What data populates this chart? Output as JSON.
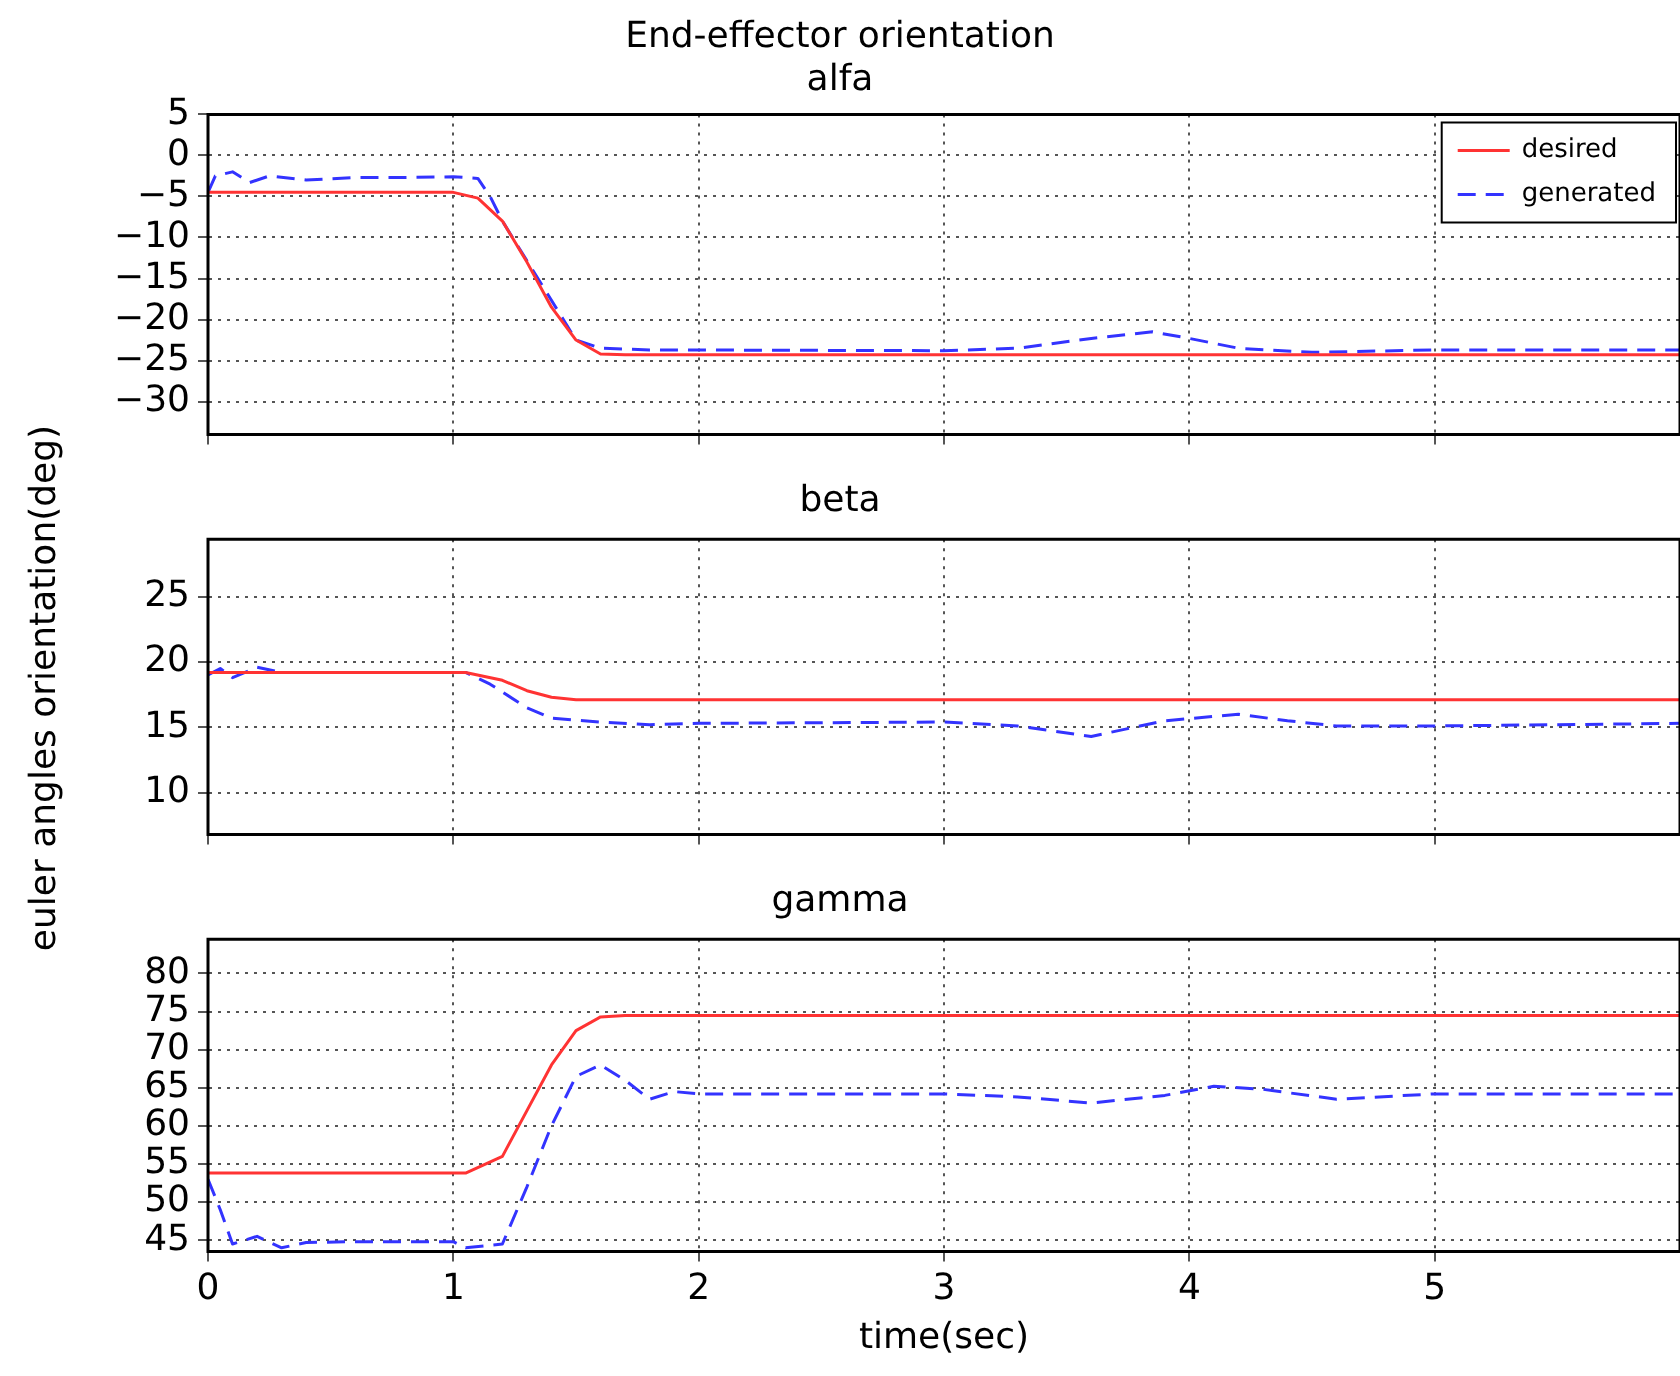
{
  "chart_data": [
    {
      "type": "line",
      "title": "End-effector orientation",
      "subtitle": "alfa",
      "xlim": [
        0,
        6
      ],
      "xticks": [
        0,
        1,
        2,
        3,
        4,
        5
      ],
      "ylim": [
        -34,
        5
      ],
      "yticks": [
        5,
        0,
        -5,
        -10,
        -15,
        -20,
        -25,
        -30
      ],
      "grid": true,
      "legend": "top right",
      "marker": "none",
      "tick_labels": "y",
      "series": [
        {
          "name": "desired",
          "color": "#ff3333",
          "line_style": "solid",
          "x": [
            0,
            1,
            1.1,
            1.2,
            1.3,
            1.4,
            1.5,
            1.6,
            1.7,
            6
          ],
          "values": [
            -4.5,
            -4.5,
            -5.2,
            -8,
            -13,
            -18.5,
            -22.5,
            -24.2,
            -24.3,
            -24.3
          ]
        },
        {
          "name": "generated",
          "color": "#3333ff",
          "line_style": "dashed",
          "x": [
            0,
            0.03,
            0.1,
            0.17,
            0.25,
            0.4,
            0.6,
            0.8,
            1,
            1.1,
            1.15,
            1.2,
            1.5,
            1.6,
            1.8,
            3,
            3.3,
            3.6,
            3.85,
            4,
            4.2,
            4.5,
            5,
            6
          ],
          "values": [
            -4.5,
            -2.5,
            -2,
            -3.3,
            -2.5,
            -3,
            -2.7,
            -2.7,
            -2.6,
            -2.8,
            -5,
            -8,
            -22.5,
            -23.5,
            -23.7,
            -23.8,
            -23.5,
            -22.3,
            -21.5,
            -22.3,
            -23.5,
            -24,
            -23.7,
            -23.7
          ]
        }
      ]
    },
    {
      "type": "line",
      "title": "beta",
      "ylabel": "euler angles orientation(deg)",
      "xlim": [
        0,
        6
      ],
      "xticks": [
        0,
        1,
        2,
        3,
        4,
        5
      ],
      "ylim": [
        6.8,
        29.4
      ],
      "yticks": [
        10,
        15,
        20,
        25
      ],
      "grid": true,
      "marker": "none",
      "tick_labels": "y",
      "series": [
        {
          "color": "#ff3333",
          "line_style": "solid",
          "x": [
            0,
            1.05,
            1.2,
            1.3,
            1.4,
            1.5,
            6
          ],
          "values": [
            19.2,
            19.2,
            18.6,
            17.8,
            17.3,
            17.1,
            17.1
          ]
        },
        {
          "color": "#3333ff",
          "line_style": "dashed",
          "x": [
            0,
            0.05,
            0.1,
            0.2,
            0.3,
            1.05,
            1.15,
            1.3,
            1.4,
            1.6,
            1.8,
            2,
            3,
            3.3,
            3.6,
            3.9,
            4.2,
            4.4,
            4.6,
            5,
            6
          ],
          "values": [
            19,
            19.5,
            18.8,
            19.6,
            19.2,
            19.2,
            18.3,
            16.5,
            15.7,
            15.4,
            15.2,
            15.3,
            15.4,
            15.1,
            14.3,
            15.5,
            16,
            15.5,
            15.1,
            15.1,
            15.3
          ]
        }
      ]
    },
    {
      "type": "line",
      "title": "gamma",
      "xlabel": "time(sec)",
      "xlim": [
        0,
        6
      ],
      "xticks": [
        0,
        1,
        2,
        3,
        4,
        5
      ],
      "ylim": [
        43.5,
        84.5
      ],
      "yticks": [
        45,
        50,
        55,
        60,
        65,
        70,
        75,
        80
      ],
      "grid": true,
      "marker": "none",
      "series": [
        {
          "color": "#ff3333",
          "line_style": "solid",
          "x": [
            0,
            1.05,
            1.2,
            1.3,
            1.4,
            1.5,
            1.6,
            1.7,
            6
          ],
          "values": [
            53.8,
            53.8,
            56,
            62,
            68,
            72.5,
            74.3,
            74.5,
            74.5
          ]
        },
        {
          "color": "#3333ff",
          "line_style": "dashed",
          "x": [
            0,
            0.05,
            0.1,
            0.2,
            0.3,
            0.4,
            0.6,
            0.8,
            1,
            1.05,
            1.2,
            1.3,
            1.4,
            1.5,
            1.6,
            1.7,
            1.8,
            1.9,
            2,
            3,
            3.3,
            3.6,
            3.9,
            4.1,
            4.3,
            4.6,
            5,
            6
          ],
          "values": [
            53,
            49,
            44.5,
            45.5,
            44,
            44.7,
            44.8,
            44.8,
            44.8,
            44,
            44.5,
            52,
            60,
            66.5,
            68,
            66,
            63.5,
            64.5,
            64.2,
            64.2,
            63.8,
            63,
            64,
            65.2,
            64.8,
            63.5,
            64.2,
            64.2
          ]
        }
      ]
    }
  ]
}
